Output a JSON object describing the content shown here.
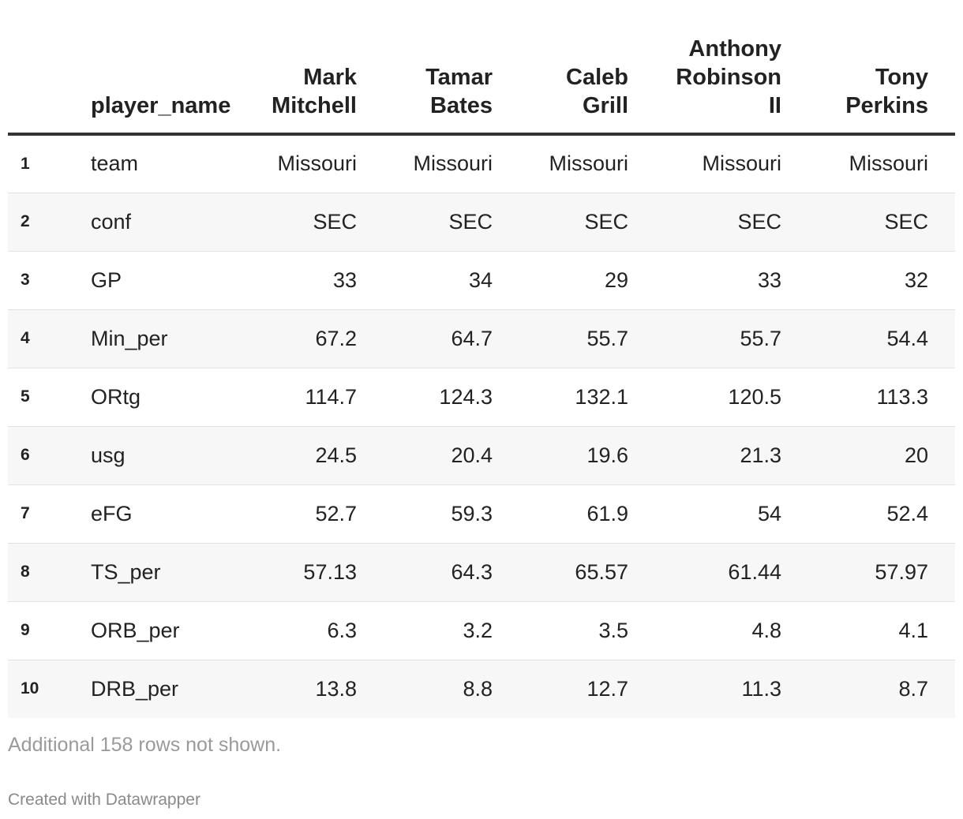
{
  "chart_data": {
    "type": "table",
    "header": {
      "name_column": "player_name",
      "players": [
        [
          "Mark",
          "Mitchell"
        ],
        [
          "Tamar",
          "Bates"
        ],
        [
          "Caleb",
          "Grill"
        ],
        [
          "Anthony",
          "Robinson",
          "II"
        ],
        [
          "Tony",
          "Perkins"
        ]
      ]
    },
    "rows": [
      {
        "num": "1",
        "stat": "team",
        "values": [
          "Missouri",
          "Missouri",
          "Missouri",
          "Missouri",
          "Missouri"
        ]
      },
      {
        "num": "2",
        "stat": "conf",
        "values": [
          "SEC",
          "SEC",
          "SEC",
          "SEC",
          "SEC"
        ]
      },
      {
        "num": "3",
        "stat": "GP",
        "values": [
          "33",
          "34",
          "29",
          "33",
          "32"
        ]
      },
      {
        "num": "4",
        "stat": "Min_per",
        "values": [
          "67.2",
          "64.7",
          "55.7",
          "55.7",
          "54.4"
        ]
      },
      {
        "num": "5",
        "stat": "ORtg",
        "values": [
          "114.7",
          "124.3",
          "132.1",
          "120.5",
          "113.3"
        ]
      },
      {
        "num": "6",
        "stat": "usg",
        "values": [
          "24.5",
          "20.4",
          "19.6",
          "21.3",
          "20"
        ]
      },
      {
        "num": "7",
        "stat": "eFG",
        "values": [
          "52.7",
          "59.3",
          "61.9",
          "54",
          "52.4"
        ]
      },
      {
        "num": "8",
        "stat": "TS_per",
        "values": [
          "57.13",
          "64.3",
          "65.57",
          "61.44",
          "57.97"
        ]
      },
      {
        "num": "9",
        "stat": "ORB_per",
        "values": [
          "6.3",
          "3.2",
          "3.5",
          "4.8",
          "4.1"
        ]
      },
      {
        "num": "10",
        "stat": "DRB_per",
        "values": [
          "13.8",
          "8.8",
          "12.7",
          "11.3",
          "8.7"
        ]
      }
    ],
    "notes": "Additional 158 rows not shown.",
    "credit": "Created with Datawrapper"
  }
}
